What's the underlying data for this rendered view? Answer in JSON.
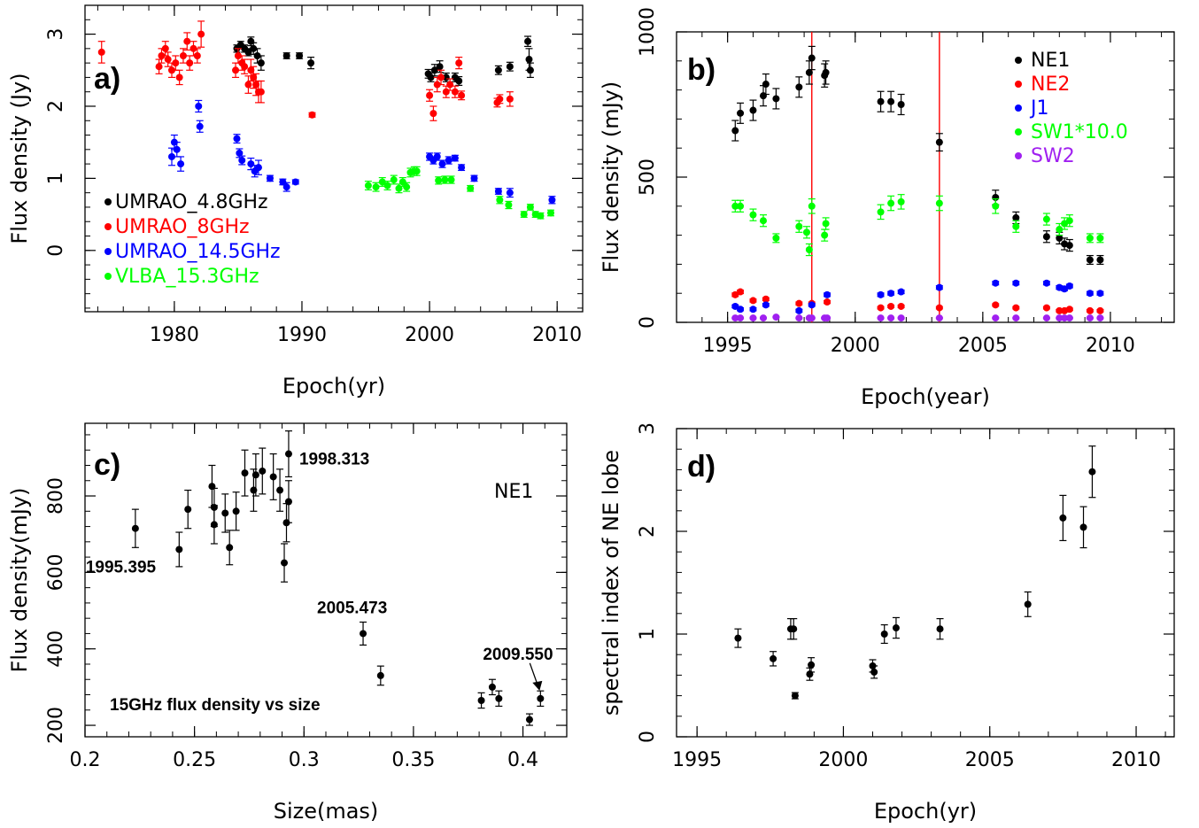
{
  "chart_data": [
    {
      "panel": "a)",
      "type": "scatter",
      "xlabel": "Epoch(yr)",
      "ylabel": "Flux density (Jy)",
      "xlim": [
        1973,
        2012
      ],
      "ylim": [
        -0.85,
        3.4
      ],
      "xticks": [
        1980,
        1990,
        2000,
        2010
      ],
      "yticks": [
        0,
        1,
        2,
        3
      ],
      "legend_position": "bottom-left",
      "series": [
        {
          "name": "UMRAO_4.8GHz",
          "color": "#000000",
          "x": [
            1984.9,
            1985.2,
            1985.5,
            1985.8,
            1986.0,
            1986.2,
            1986.5,
            1986.8,
            1988.8,
            1989.8,
            1990.7,
            1999.9,
            2000.1,
            2000.4,
            2000.8,
            2001.3,
            2002.0,
            2002.3,
            2005.4,
            2006.3,
            2007.7,
            2007.8,
            2007.9
          ],
          "y": [
            2.8,
            2.85,
            2.8,
            2.75,
            2.9,
            2.8,
            2.7,
            2.6,
            2.7,
            2.7,
            2.6,
            2.45,
            2.4,
            2.5,
            2.55,
            2.4,
            2.4,
            2.35,
            2.5,
            2.55,
            2.9,
            2.65,
            2.5
          ],
          "err": [
            0.05,
            0.05,
            0.05,
            0.05,
            0.06,
            0.08,
            0.1,
            0.1,
            0.04,
            0.04,
            0.08,
            0.06,
            0.06,
            0.08,
            0.08,
            0.06,
            0.06,
            0.06,
            0.06,
            0.06,
            0.07,
            0.15,
            0.1
          ]
        },
        {
          "name": "UMRAO_8GHz",
          "color": "#ff0000",
          "x": [
            1974.3,
            1978.8,
            1979.0,
            1979.3,
            1979.5,
            1979.8,
            1980.1,
            1980.4,
            1980.7,
            1981.0,
            1981.2,
            1981.5,
            1981.8,
            1982.1,
            1984.8,
            1985.0,
            1985.3,
            1985.5,
            1985.8,
            1986.0,
            1986.2,
            1986.4,
            1986.6,
            1986.8,
            1990.8,
            2000.0,
            2000.3,
            2000.6,
            2000.9,
            2001.3,
            2001.6,
            2002.0,
            2002.3,
            2002.5,
            2005.3,
            2005.5,
            2006.3
          ],
          "y": [
            2.75,
            2.55,
            2.7,
            2.8,
            2.65,
            2.5,
            2.6,
            2.4,
            2.7,
            2.9,
            2.6,
            2.8,
            2.7,
            3.0,
            2.5,
            2.7,
            2.6,
            2.55,
            2.3,
            2.5,
            2.4,
            2.3,
            2.2,
            2.2,
            1.88,
            2.15,
            1.9,
            2.3,
            2.4,
            2.2,
            2.3,
            2.2,
            2.6,
            2.15,
            2.05,
            2.1,
            2.1
          ],
          "err": [
            0.15,
            0.1,
            0.1,
            0.1,
            0.1,
            0.1,
            0.1,
            0.1,
            0.1,
            0.12,
            0.1,
            0.1,
            0.1,
            0.18,
            0.1,
            0.1,
            0.1,
            0.1,
            0.12,
            0.15,
            0.15,
            0.15,
            0.15,
            0.15,
            0.03,
            0.08,
            0.1,
            0.1,
            0.1,
            0.08,
            0.08,
            0.08,
            0.08,
            0.06,
            0.06,
            0.06,
            0.1
          ]
        },
        {
          "name": "UMRAO_14.5GHz",
          "color": "#0000ff",
          "x": [
            1979.8,
            1980.0,
            1980.2,
            1980.5,
            1981.9,
            1982.0,
            1984.9,
            1985.1,
            1985.3,
            1986.0,
            1986.3,
            1986.6,
            1987.5,
            1988.5,
            1988.8,
            1989.5,
            2000.0,
            2000.3,
            2000.6,
            2001.0,
            2001.5,
            2002.0,
            2002.5,
            2003.5,
            2005.4,
            2006.3,
            2009.6
          ],
          "y": [
            1.3,
            1.5,
            1.4,
            1.2,
            2.0,
            1.72,
            1.55,
            1.35,
            1.25,
            1.2,
            1.1,
            1.15,
            1.0,
            0.95,
            0.88,
            0.95,
            1.3,
            1.25,
            1.3,
            1.2,
            1.25,
            1.28,
            1.15,
            1.0,
            0.82,
            0.8,
            0.7
          ],
          "err": [
            0.12,
            0.1,
            0.1,
            0.1,
            0.08,
            0.08,
            0.06,
            0.06,
            0.06,
            0.08,
            0.08,
            0.1,
            0.04,
            0.04,
            0.06,
            0.03,
            0.05,
            0.05,
            0.05,
            0.05,
            0.05,
            0.04,
            0.04,
            0.04,
            0.04,
            0.06,
            0.05
          ]
        },
        {
          "name": "VLBA_15.3GHz",
          "color": "#00ff00",
          "x": [
            1995.2,
            1995.8,
            1996.3,
            1996.7,
            1997.2,
            1997.6,
            1997.9,
            1998.2,
            1998.5,
            1998.8,
            1999.0,
            2000.7,
            2001.2,
            2001.7,
            2003.2,
            2005.5,
            2006.2,
            2007.4,
            2007.9,
            2008.3,
            2008.7,
            2009.5
          ],
          "y": [
            0.9,
            0.88,
            0.95,
            0.9,
            0.98,
            0.86,
            0.95,
            0.88,
            1.08,
            1.1,
            1.1,
            0.97,
            0.98,
            0.98,
            0.86,
            0.7,
            0.63,
            0.5,
            0.6,
            0.5,
            0.48,
            0.52
          ],
          "err": [
            0.06,
            0.06,
            0.06,
            0.06,
            0.06,
            0.06,
            0.06,
            0.06,
            0.06,
            0.06,
            0.06,
            0.05,
            0.05,
            0.05,
            0.04,
            0.05,
            0.05,
            0.04,
            0.04,
            0.04,
            0.04,
            0.04
          ]
        }
      ]
    },
    {
      "panel": "b)",
      "type": "scatter",
      "xlabel": "Epoch(year)",
      "ylabel": "Flux density (mJy)",
      "xlim": [
        1993,
        2012.5
      ],
      "ylim": [
        0,
        1000
      ],
      "xticks": [
        1995,
        2000,
        2005,
        2010
      ],
      "yticks": [
        0,
        500,
        1000
      ],
      "vertical_lines": [
        1998.3,
        2003.3
      ],
      "legend_position": "top-right",
      "series": [
        {
          "name": "NE1",
          "color": "#000000",
          "x": [
            1995.3,
            1995.5,
            1996.0,
            1996.4,
            1996.5,
            1996.9,
            1997.8,
            1998.2,
            1998.3,
            1998.8,
            1998.85,
            2001.0,
            2001.4,
            2001.8,
            2003.3,
            2005.5,
            2006.3,
            2007.5,
            2008.0,
            2008.2,
            2008.4,
            2009.2,
            2009.6
          ],
          "y": [
            660,
            720,
            730,
            780,
            820,
            770,
            810,
            860,
            910,
            850,
            860,
            760,
            760,
            750,
            620,
            430,
            360,
            295,
            290,
            270,
            265,
            215,
            215
          ],
          "err": [
            35,
            35,
            35,
            35,
            35,
            35,
            35,
            40,
            40,
            40,
            40,
            35,
            35,
            35,
            30,
            25,
            20,
            20,
            20,
            20,
            20,
            15,
            15
          ]
        },
        {
          "name": "NE2",
          "color": "#ff0000",
          "x": [
            1995.3,
            1995.5,
            1996.0,
            1996.5,
            1997.8,
            1998.3,
            1998.9,
            2001.0,
            2001.4,
            2001.8,
            2003.3,
            2005.5,
            2006.3,
            2007.5,
            2008.0,
            2008.2,
            2008.4,
            2009.2,
            2009.6
          ],
          "y": [
            95,
            105,
            75,
            80,
            65,
            65,
            70,
            50,
            55,
            55,
            50,
            60,
            50,
            50,
            40,
            40,
            45,
            40,
            40
          ],
          "err": [
            6,
            6,
            5,
            5,
            5,
            5,
            5,
            4,
            4,
            4,
            4,
            4,
            4,
            4,
            4,
            4,
            4,
            4,
            4
          ]
        },
        {
          "name": "J1",
          "color": "#0000ff",
          "x": [
            1995.3,
            1995.5,
            1996.0,
            1996.5,
            1997.8,
            1998.3,
            1998.9,
            2001.0,
            2001.4,
            2001.8,
            2003.3,
            2005.5,
            2006.3,
            2007.5,
            2008.0,
            2008.2,
            2008.4,
            2009.2,
            2009.6
          ],
          "y": [
            55,
            45,
            45,
            60,
            40,
            60,
            95,
            95,
            100,
            105,
            120,
            135,
            135,
            135,
            120,
            115,
            125,
            100,
            100
          ],
          "err": [
            5,
            5,
            5,
            5,
            5,
            5,
            6,
            6,
            6,
            6,
            6,
            6,
            6,
            6,
            6,
            6,
            6,
            6,
            6
          ]
        },
        {
          "name": "SW1*10.0",
          "color": "#00ff00",
          "x": [
            1995.3,
            1995.5,
            1996.0,
            1996.4,
            1996.9,
            1997.8,
            1998.1,
            1998.2,
            1998.3,
            1998.8,
            1998.85,
            2001.0,
            2001.4,
            2001.8,
            2003.3,
            2005.5,
            2006.3,
            2007.5,
            2008.0,
            2008.2,
            2008.4,
            2009.2,
            2009.6
          ],
          "y": [
            400,
            400,
            370,
            350,
            290,
            330,
            310,
            250,
            400,
            300,
            340,
            380,
            410,
            415,
            410,
            400,
            330,
            355,
            320,
            340,
            350,
            290,
            290
          ],
          "err": [
            20,
            20,
            20,
            20,
            15,
            20,
            20,
            20,
            25,
            20,
            20,
            25,
            25,
            25,
            25,
            25,
            20,
            20,
            20,
            20,
            20,
            15,
            15
          ]
        },
        {
          "name": "SW2",
          "color": "#a020f0",
          "x": [
            1995.3,
            1995.5,
            1996.0,
            1996.4,
            1996.9,
            1997.8,
            1998.2,
            1998.3,
            1998.8,
            1998.9,
            2001.0,
            2001.4,
            2001.8,
            2003.3,
            2005.5,
            2006.3,
            2007.5,
            2008.0,
            2008.2,
            2008.4,
            2009.2,
            2009.6
          ],
          "y": [
            15,
            15,
            15,
            15,
            18,
            15,
            15,
            15,
            15,
            15,
            15,
            15,
            15,
            15,
            15,
            15,
            15,
            15,
            15,
            15,
            15,
            15
          ],
          "err": [
            2,
            2,
            2,
            2,
            2,
            2,
            2,
            2,
            2,
            2,
            2,
            2,
            2,
            2,
            2,
            2,
            2,
            2,
            2,
            2,
            2,
            2
          ]
        }
      ]
    },
    {
      "panel": "c)",
      "type": "scatter",
      "xlabel": "Size(mas)",
      "ylabel": "Flux density(mJy)",
      "xlim": [
        0.2,
        0.42
      ],
      "ylim": [
        170,
        990
      ],
      "xticks": [
        0.2,
        0.25,
        0.3,
        0.35,
        0.4
      ],
      "xtick_labels": [
        "0.2",
        "0.25",
        "0.3",
        "0.35",
        "0.4"
      ],
      "yticks": [
        200,
        400,
        600,
        800
      ],
      "series_label": "NE1",
      "note": "15GHz flux density vs size",
      "annotations": [
        {
          "text": "1998.313",
          "x": 0.293,
          "y": 910
        },
        {
          "text": "1995.395",
          "x": 0.223,
          "y": 715
        },
        {
          "text": "2005.473",
          "x": 0.327,
          "y": 440
        },
        {
          "text": "2009.550",
          "x": 0.408,
          "y": 270
        }
      ],
      "series": [
        {
          "name": "",
          "color": "#000000",
          "x": [
            0.223,
            0.243,
            0.247,
            0.258,
            0.259,
            0.259,
            0.264,
            0.266,
            0.269,
            0.273,
            0.277,
            0.278,
            0.281,
            0.286,
            0.289,
            0.291,
            0.292,
            0.293,
            0.293,
            0.327,
            0.335,
            0.381,
            0.386,
            0.389,
            0.403,
            0.408
          ],
          "y": [
            715,
            660,
            765,
            825,
            770,
            725,
            755,
            665,
            760,
            860,
            815,
            855,
            865,
            850,
            815,
            625,
            730,
            910,
            785,
            440,
            330,
            265,
            300,
            270,
            215,
            270
          ],
          "err": [
            50,
            45,
            50,
            55,
            50,
            50,
            50,
            45,
            50,
            60,
            55,
            55,
            60,
            60,
            55,
            50,
            50,
            60,
            55,
            30,
            25,
            20,
            20,
            20,
            15,
            20
          ]
        }
      ]
    },
    {
      "panel": "d)",
      "type": "scatter",
      "xlabel": "Epoch(yr)",
      "ylabel": "spectral index of NE lobe",
      "xlim": [
        1994.3,
        2011.3
      ],
      "ylim": [
        0,
        3
      ],
      "xticks": [
        1995,
        2000,
        2005,
        2010
      ],
      "yticks": [
        0,
        1,
        2,
        3
      ],
      "series": [
        {
          "name": "",
          "color": "#000000",
          "x": [
            1996.4,
            1997.6,
            1998.2,
            1998.3,
            1998.35,
            1998.85,
            1998.9,
            2001.0,
            2001.05,
            2001.4,
            2001.8,
            2003.3,
            2006.3,
            2007.5,
            2008.2,
            2008.5
          ],
          "y": [
            0.96,
            0.76,
            1.05,
            1.05,
            0.4,
            0.61,
            0.7,
            0.69,
            0.63,
            1.0,
            1.06,
            1.05,
            1.29,
            2.13,
            2.04,
            2.58
          ],
          "err": [
            0.09,
            0.07,
            0.1,
            0.1,
            0.03,
            0.06,
            0.07,
            0.06,
            0.06,
            0.09,
            0.1,
            0.1,
            0.12,
            0.22,
            0.2,
            0.25
          ]
        }
      ]
    }
  ]
}
